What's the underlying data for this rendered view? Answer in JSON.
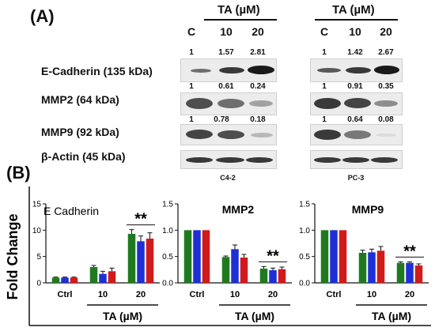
{
  "panel_a": {
    "label": "(A)",
    "ta_header": "TA (µM)",
    "lanes": [
      "C",
      "10",
      "20"
    ],
    "proteins": [
      "E-Cadherin (135 kDa)",
      "MMP2 (64 kDa)",
      "MMP9 (92 kDa)",
      "β-Actin (45 kDa)"
    ],
    "cell_lines": [
      "C4-2",
      "PC-3"
    ],
    "band_values": {
      "C4-2": {
        "E-Cadherin": [
          "1",
          "1.57",
          "2.81"
        ],
        "MMP2": [
          "1",
          "0.61",
          "0.24"
        ],
        "MMP9": [
          "1",
          "0.78",
          "0.18"
        ]
      },
      "PC-3": {
        "E-Cadherin": [
          "1",
          "1.42",
          "2.67"
        ],
        "MMP2": [
          "1",
          "0.91",
          "0.35"
        ],
        "MMP9": [
          "1",
          "0.64",
          "0.08"
        ]
      }
    }
  },
  "panel_b": {
    "label": "(B)",
    "ylabel": "Fold Change",
    "xlabel": "TA (µM)",
    "significance": "**"
  },
  "colors": {
    "green": "#1f7a1f",
    "blue": "#1f2fd6",
    "red": "#d11a1a"
  },
  "chart_data": [
    {
      "type": "bar",
      "title": "E Cadherin",
      "categories": [
        "Ctrl",
        "10",
        "20"
      ],
      "ylim": [
        0,
        15
      ],
      "yticks": [
        "0",
        "5",
        "10",
        "15"
      ],
      "xlabel": "TA (µM)",
      "groups": [
        [
          1.0,
          1.0,
          1.0
        ],
        [
          3.0,
          1.7,
          2.2
        ],
        [
          9.3,
          7.9,
          8.4
        ]
      ],
      "errors": [
        [
          0.1,
          0.1,
          0.1
        ],
        [
          0.3,
          0.5,
          0.6
        ],
        [
          0.8,
          1.0,
          1.1
        ]
      ],
      "significance": {
        "category": "20",
        "label": "**"
      }
    },
    {
      "type": "bar",
      "title": "MMP2",
      "categories": [
        "Ctrl",
        "10",
        "20"
      ],
      "ylim": [
        0,
        1.5
      ],
      "yticks": [
        "0.0",
        "0.5",
        "1.0",
        "1.5"
      ],
      "xlabel": "TA (µM)",
      "groups": [
        [
          1.0,
          1.0,
          1.0
        ],
        [
          0.49,
          0.64,
          0.48
        ],
        [
          0.27,
          0.24,
          0.26
        ]
      ],
      "errors": [
        [
          0.0,
          0.0,
          0.0
        ],
        [
          0.02,
          0.08,
          0.06
        ],
        [
          0.04,
          0.04,
          0.04
        ]
      ],
      "significance": {
        "category": "20",
        "label": "**"
      }
    },
    {
      "type": "bar",
      "title": "MMP9",
      "categories": [
        "Ctrl",
        "10",
        "20"
      ],
      "ylim": [
        0,
        1.5
      ],
      "yticks": [
        "0.0",
        "0.5",
        "1.0",
        "1.5"
      ],
      "xlabel": "TA (µM)",
      "groups": [
        [
          1.0,
          1.0,
          1.0
        ],
        [
          0.57,
          0.58,
          0.61
        ],
        [
          0.38,
          0.38,
          0.33
        ]
      ],
      "errors": [
        [
          0.0,
          0.0,
          0.0
        ],
        [
          0.05,
          0.06,
          0.08
        ],
        [
          0.02,
          0.02,
          0.03
        ]
      ],
      "significance": {
        "category": "20",
        "label": "**"
      }
    }
  ]
}
